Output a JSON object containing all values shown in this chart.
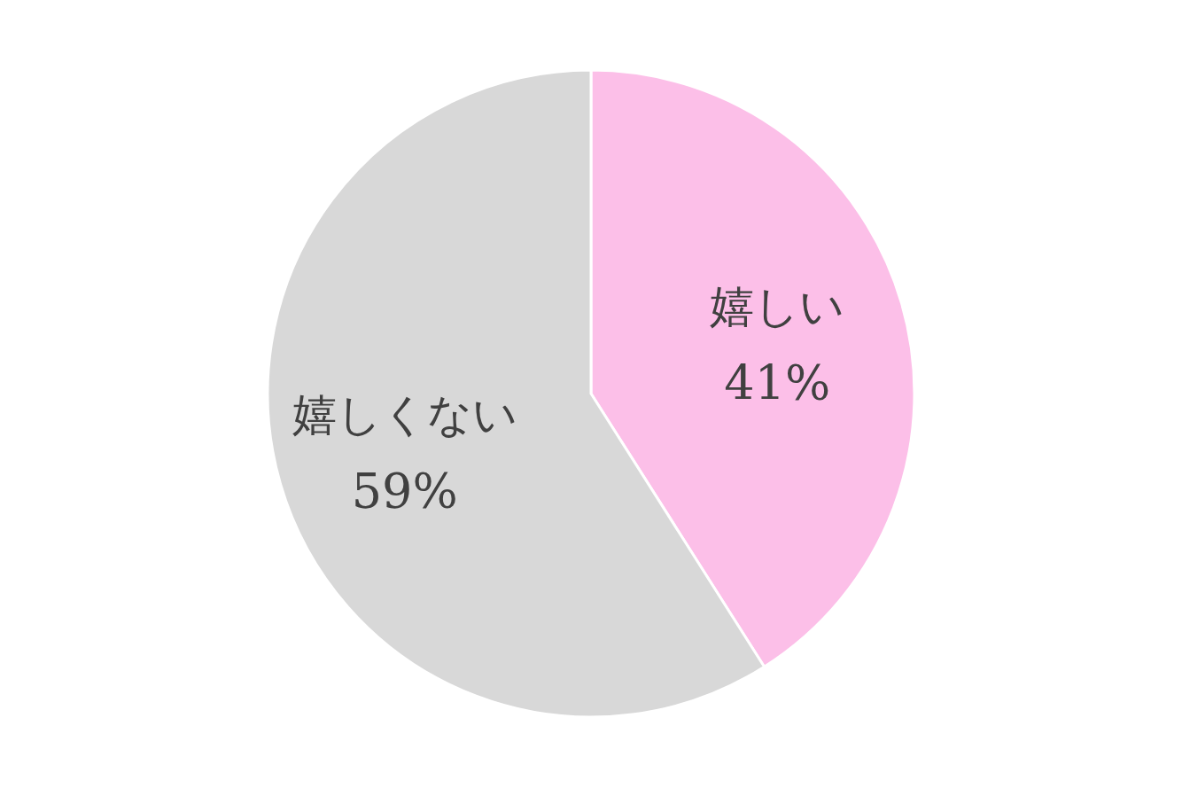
{
  "chart_data": {
    "type": "pie",
    "categories": [
      "嬉しい",
      "嬉しくない"
    ],
    "values": [
      41,
      59
    ],
    "value_labels": [
      "41%",
      "59%"
    ],
    "colors": [
      "#fcbfe8",
      "#d8d8d8"
    ]
  }
}
